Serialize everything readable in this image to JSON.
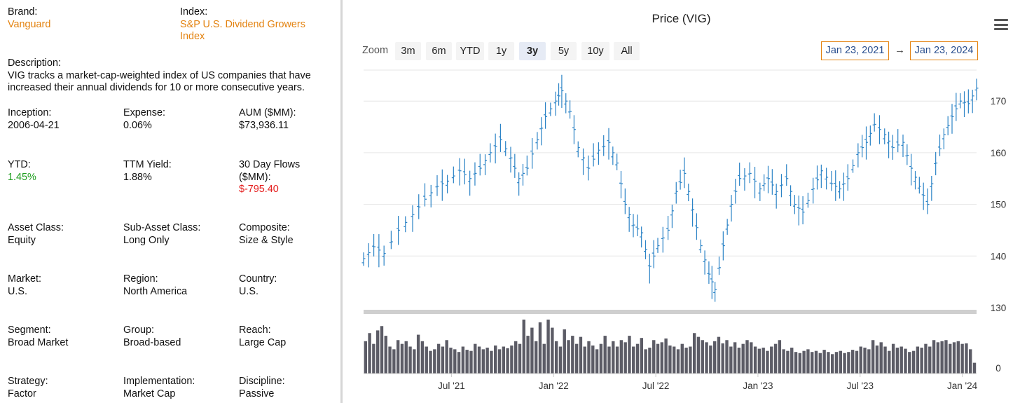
{
  "left": {
    "brand_label": "Brand:",
    "brand_value": "Vanguard",
    "index_label": "Index:",
    "index_value_line1": "S&P U.S. Dividend Growers",
    "index_value_line2": "Index",
    "description_label": "Description:",
    "description_line1": "VIG tracks a market-cap-weighted index of US companies that have",
    "description_line2": "increased their annual dividends for 10 or more consecutive years.",
    "inception_label": "Inception:",
    "inception_value": "2006-04-21",
    "expense_label": "Expense:",
    "expense_value": "0.06%",
    "aum_label": "AUM ($MM):",
    "aum_value": "$73,936.11",
    "ytd_label": "YTD:",
    "ytd_value": "1.45%",
    "ttm_label": "TTM Yield:",
    "ttm_value": "1.88%",
    "flows_label_line1": "30 Day Flows",
    "flows_label_line2": "($MM):",
    "flows_value": "$-795.40",
    "asset_class_label": "Asset Class:",
    "asset_class_value": "Equity",
    "sub_asset_label": "Sub-Asset Class:",
    "sub_asset_value": "Long Only",
    "composite_label": "Composite:",
    "composite_value": "Size & Style",
    "market_label": "Market:",
    "market_value": "U.S.",
    "region_label": "Region:",
    "region_value": "North America",
    "country_label": "Country:",
    "country_value": "U.S.",
    "segment_label": "Segment:",
    "segment_value": "Broad Market",
    "group_label": "Group:",
    "group_value": "Broad-based",
    "reach_label": "Reach:",
    "reach_value": "Large Cap",
    "strategy_label": "Strategy:",
    "strategy_value": "Factor",
    "implementation_label": "Implementation:",
    "implementation_value": "Market Cap",
    "discipline_label": "Discipline:",
    "discipline_value": "Passive"
  },
  "colors": {
    "orange": "#e3820f",
    "green": "#1e9e1e",
    "red": "#e41b1b",
    "price_line": "#2b83c6",
    "volume_bar": "#5c5c66",
    "date_text": "#2a4f8f"
  },
  "chart": {
    "title": "Price (VIG)",
    "zoom_label": "Zoom",
    "zoom_buttons": [
      "3m",
      "6m",
      "YTD",
      "1y",
      "3y",
      "5y",
      "10y",
      "All"
    ],
    "active_zoom": "3y",
    "date_from": "Jan 23, 2021",
    "date_to": "Jan 23, 2024",
    "date_arrow": "→",
    "menu_icon": "hamburger-menu-icon"
  },
  "chart_data": {
    "type": "line",
    "title": "Price (VIG)",
    "style": "weekly OHLC bars",
    "x_range": [
      "2021-01-23",
      "2024-01-23"
    ],
    "x_tick_labels": [
      "Jul '21",
      "Jan '22",
      "Jul '22",
      "Jan '23",
      "Jul '23",
      "Jan '24"
    ],
    "price_axis": {
      "ticks": [
        130,
        140,
        150,
        160,
        170
      ],
      "ylim": [
        130,
        176
      ]
    },
    "volume_axis": {
      "ticks": [
        0
      ]
    },
    "price_series": {
      "name": "VIG",
      "values": [
        [
          2021.06,
          139.5
        ],
        [
          2021.11,
          141.8
        ],
        [
          2021.16,
          140.5
        ],
        [
          2021.23,
          145.0
        ],
        [
          2021.3,
          148.0
        ],
        [
          2021.36,
          151.0
        ],
        [
          2021.42,
          153.5
        ],
        [
          2021.47,
          154.5
        ],
        [
          2021.53,
          156.5
        ],
        [
          2021.58,
          155.0
        ],
        [
          2021.63,
          157.0
        ],
        [
          2021.68,
          160.0
        ],
        [
          2021.73,
          162.5
        ],
        [
          2021.78,
          159.0
        ],
        [
          2021.82,
          155.0
        ],
        [
          2021.86,
          157.0
        ],
        [
          2021.91,
          162.5
        ],
        [
          2021.95,
          167.0
        ],
        [
          2022.0,
          170.0
        ],
        [
          2022.03,
          172.0
        ],
        [
          2022.07,
          168.0
        ],
        [
          2022.11,
          161.0
        ],
        [
          2022.16,
          157.0
        ],
        [
          2022.21,
          160.5
        ],
        [
          2022.26,
          162.0
        ],
        [
          2022.3,
          158.0
        ],
        [
          2022.34,
          150.0
        ],
        [
          2022.38,
          146.0
        ],
        [
          2022.42,
          144.5
        ],
        [
          2022.46,
          138.0
        ],
        [
          2022.5,
          142.0
        ],
        [
          2022.55,
          145.0
        ],
        [
          2022.59,
          152.5
        ],
        [
          2022.63,
          156.0
        ],
        [
          2022.67,
          149.0
        ],
        [
          2022.71,
          142.0
        ],
        [
          2022.75,
          136.5
        ],
        [
          2022.78,
          133.5
        ],
        [
          2022.82,
          142.0
        ],
        [
          2022.86,
          150.0
        ],
        [
          2022.9,
          155.0
        ],
        [
          2022.95,
          156.0
        ],
        [
          2023.0,
          153.0
        ],
        [
          2023.04,
          155.0
        ],
        [
          2023.08,
          152.5
        ],
        [
          2023.13,
          155.0
        ],
        [
          2023.17,
          150.0
        ],
        [
          2023.21,
          148.5
        ],
        [
          2023.26,
          153.0
        ],
        [
          2023.3,
          156.5
        ],
        [
          2023.35,
          154.0
        ],
        [
          2023.39,
          153.0
        ],
        [
          2023.43,
          155.0
        ],
        [
          2023.48,
          160.0
        ],
        [
          2023.52,
          162.0
        ],
        [
          2023.56,
          165.5
        ],
        [
          2023.61,
          163.5
        ],
        [
          2023.65,
          161.0
        ],
        [
          2023.7,
          162.0
        ],
        [
          2023.74,
          157.0
        ],
        [
          2023.78,
          153.5
        ],
        [
          2023.82,
          150.0
        ],
        [
          2023.86,
          158.0
        ],
        [
          2023.9,
          163.5
        ],
        [
          2023.94,
          167.0
        ],
        [
          2023.98,
          170.0
        ],
        [
          2024.02,
          169.5
        ],
        [
          2024.06,
          172.5
        ]
      ]
    },
    "volume_series": {
      "name": "Volume",
      "values": [
        0.6,
        0.75,
        0.55,
        0.8,
        0.88,
        0.7,
        0.5,
        0.45,
        0.62,
        0.55,
        0.6,
        0.5,
        0.45,
        0.72,
        0.6,
        0.5,
        0.42,
        0.45,
        0.55,
        0.5,
        0.62,
        0.48,
        0.45,
        0.4,
        0.5,
        0.44,
        0.42,
        0.55,
        0.5,
        0.45,
        0.48,
        0.42,
        0.52,
        0.45,
        0.5,
        0.47,
        0.52,
        0.6,
        0.55,
        1.0,
        0.7,
        0.85,
        0.6,
        0.95,
        0.55,
        1.0,
        0.85,
        0.6,
        0.5,
        0.82,
        0.62,
        0.7,
        0.55,
        0.68,
        0.5,
        0.6,
        0.52,
        0.45,
        0.55,
        0.7,
        0.5,
        0.6,
        0.5,
        0.62,
        0.58,
        0.7,
        0.5,
        0.55,
        0.66,
        0.45,
        0.48,
        0.62,
        0.55,
        0.58,
        0.65,
        0.52,
        0.5,
        0.45,
        0.55,
        0.48,
        0.5,
        0.75,
        0.68,
        0.62,
        0.58,
        0.52,
        0.6,
        0.68,
        0.56,
        0.62,
        0.5,
        0.58,
        0.48,
        0.55,
        0.62,
        0.58,
        0.5,
        0.46,
        0.48,
        0.42,
        0.5,
        0.55,
        0.62,
        0.45,
        0.42,
        0.48,
        0.4,
        0.38,
        0.42,
        0.45,
        0.4,
        0.42,
        0.38,
        0.44,
        0.4,
        0.36,
        0.4,
        0.42,
        0.38,
        0.4,
        0.44,
        0.42,
        0.5,
        0.48,
        0.45,
        0.62,
        0.52,
        0.58,
        0.5,
        0.42,
        0.55,
        0.48,
        0.5,
        0.46,
        0.4,
        0.42,
        0.5,
        0.48,
        0.55,
        0.5,
        0.62,
        0.58,
        0.6,
        0.62,
        0.55,
        0.58,
        0.6,
        0.55,
        0.56,
        0.45,
        0.2
      ]
    }
  }
}
